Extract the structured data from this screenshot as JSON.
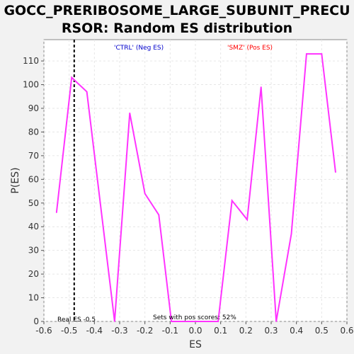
{
  "title_line1": "GOCC_PRERIBOSOME_LARGE_SUBUNIT_PRECU",
  "title_line2": "RSOR: Random ES distribution",
  "chart_data": {
    "type": "line",
    "title": "GOCC_PRERIBOSOME_LARGE_SUBUNIT_PRECURSOR: Random ES distribution",
    "xlabel": "ES",
    "ylabel": "P(ES)",
    "xlim": [
      -0.6,
      0.6
    ],
    "ylim": [
      0,
      119
    ],
    "xticks": [
      "-0.6",
      "-0.5",
      "-0.4",
      "-0.3",
      "-0.2",
      "-0.1",
      "0.0",
      "0.1",
      "0.2",
      "0.3",
      "0.4",
      "0.5",
      "0.6"
    ],
    "yticks": [
      "0",
      "10",
      "20",
      "30",
      "40",
      "50",
      "60",
      "70",
      "80",
      "90",
      "100",
      "110"
    ],
    "grid": true,
    "series": [
      {
        "color": "#ff33ff",
        "x": [
          -0.55,
          -0.49,
          -0.43,
          -0.32,
          -0.26,
          -0.2,
          -0.145,
          -0.095,
          0.09,
          0.145,
          0.205,
          0.26,
          0.32,
          0.38,
          0.44,
          0.5,
          0.555
        ],
        "y": [
          46,
          103,
          97,
          0,
          88,
          54,
          45,
          0,
          0,
          51,
          43,
          99,
          0,
          37,
          113,
          113,
          63
        ]
      }
    ],
    "real_es": -0.48,
    "annotations": {
      "neg_label": "'CTRL' (Neg ES)",
      "neg_color": "#0000cc",
      "pos_label": "'SMZ' (Pos ES)",
      "pos_color": "#ff0000",
      "real_es_label": "Real ES -0.5",
      "pos_scores_label": "Sets with pos scores: 52%"
    }
  }
}
